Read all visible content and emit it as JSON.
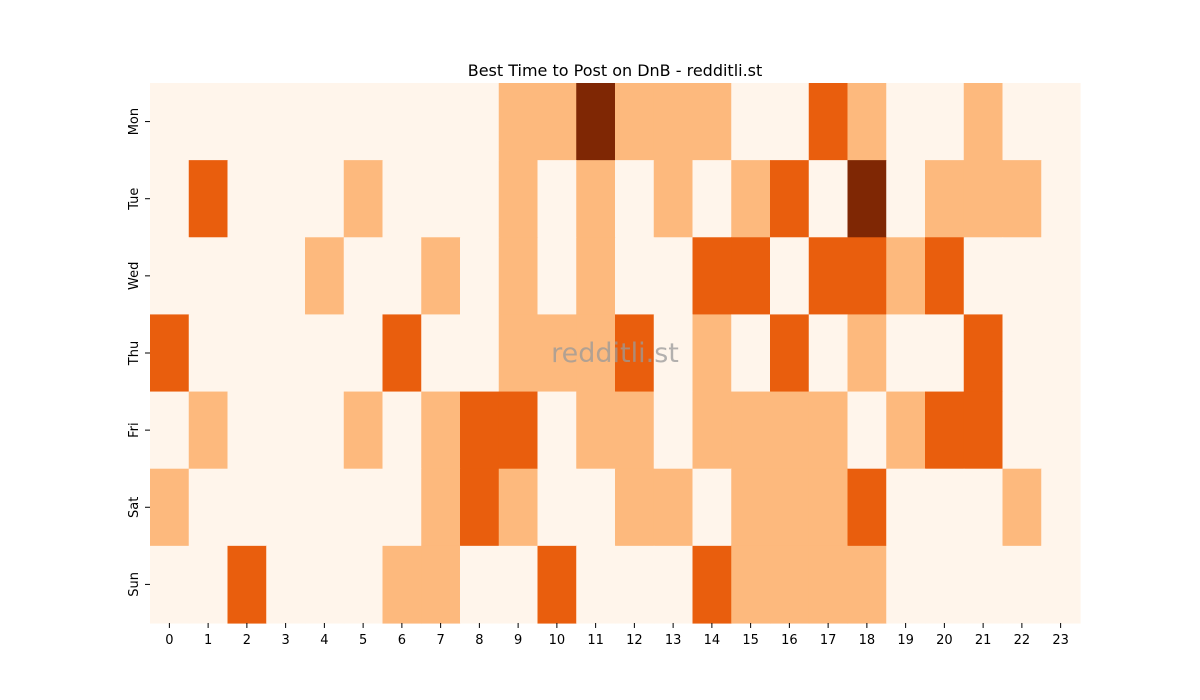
{
  "chart_data": {
    "type": "heatmap",
    "title": "Best Time to Post on DnB - redditli.st",
    "watermark": "redditli.st",
    "x_categories": [
      "0",
      "1",
      "2",
      "3",
      "4",
      "5",
      "6",
      "7",
      "8",
      "9",
      "10",
      "11",
      "12",
      "13",
      "14",
      "15",
      "16",
      "17",
      "18",
      "19",
      "20",
      "21",
      "22",
      "23"
    ],
    "y_categories": [
      "Mon",
      "Tue",
      "Wed",
      "Thu",
      "Fri",
      "Sat",
      "Sun"
    ],
    "values": [
      [
        0,
        0,
        0,
        0,
        0,
        0,
        0,
        0,
        0,
        1,
        1,
        3,
        1,
        1,
        1,
        0,
        0,
        2,
        1,
        0,
        0,
        1,
        0,
        0
      ],
      [
        0,
        2,
        0,
        0,
        0,
        1,
        0,
        0,
        0,
        1,
        0,
        1,
        0,
        1,
        0,
        1,
        2,
        0,
        3,
        0,
        1,
        1,
        1,
        0
      ],
      [
        0,
        0,
        0,
        0,
        1,
        0,
        0,
        1,
        0,
        1,
        0,
        1,
        0,
        0,
        2,
        2,
        0,
        2,
        2,
        1,
        2,
        0,
        0,
        0
      ],
      [
        2,
        0,
        0,
        0,
        0,
        0,
        2,
        0,
        0,
        1,
        1,
        1,
        2,
        0,
        1,
        0,
        2,
        0,
        1,
        0,
        0,
        2,
        0,
        0
      ],
      [
        0,
        1,
        0,
        0,
        0,
        1,
        0,
        1,
        2,
        2,
        0,
        1,
        1,
        0,
        1,
        1,
        1,
        1,
        0,
        1,
        2,
        2,
        0,
        0
      ],
      [
        1,
        0,
        0,
        0,
        0,
        0,
        0,
        1,
        2,
        1,
        0,
        0,
        1,
        1,
        0,
        1,
        1,
        1,
        2,
        0,
        0,
        0,
        1,
        0
      ],
      [
        0,
        0,
        2,
        0,
        0,
        0,
        1,
        1,
        0,
        0,
        2,
        0,
        0,
        0,
        2,
        1,
        1,
        1,
        1,
        0,
        0,
        0,
        0,
        0
      ]
    ],
    "vmin": 0,
    "vmax": 3,
    "colormap": [
      "#fff5eb",
      "#fdb97d",
      "#e95e0d",
      "#7f2704"
    ],
    "colorbar": false,
    "grid": false
  }
}
